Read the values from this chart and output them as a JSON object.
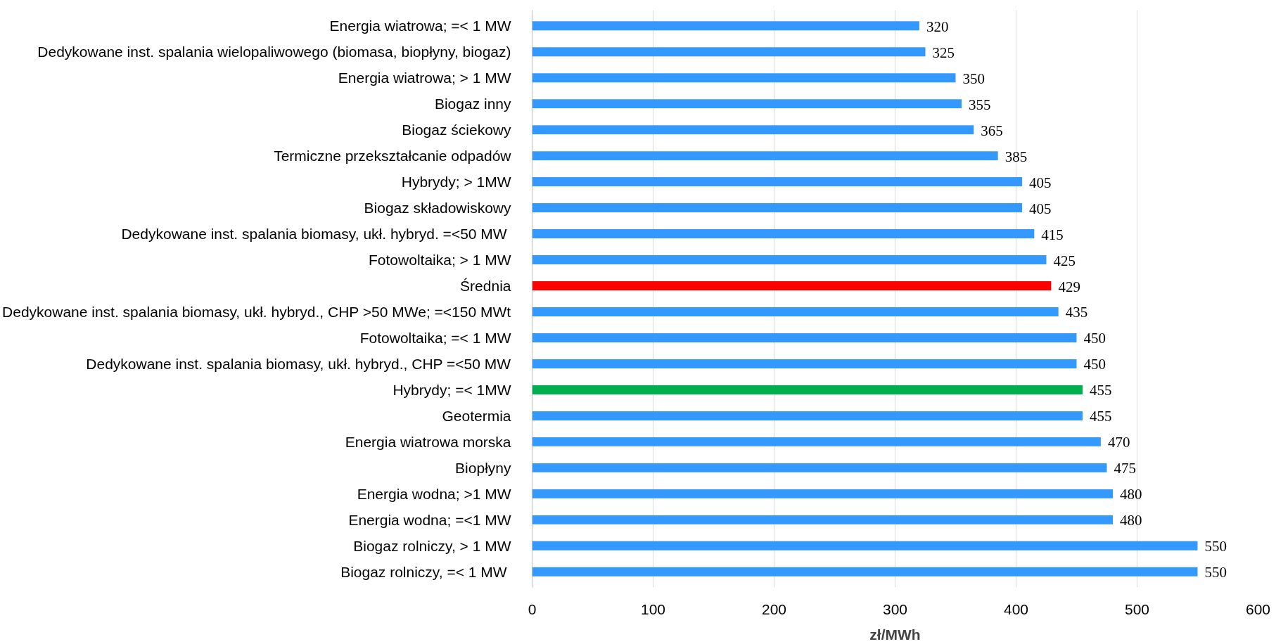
{
  "chart_data": {
    "type": "bar",
    "orientation": "horizontal",
    "xlabel": "zł/MWh",
    "categories": [
      "Energia wiatrowa; =< 1 MW",
      "Dedykowane inst. spalania wielopaliwowego (biomasa, biopłyny, biogaz)",
      "Energia wiatrowa; > 1 MW",
      "Biogaz inny",
      "Biogaz ściekowy",
      "Termiczne przekształcanie odpadów",
      "Hybrydy; > 1MW",
      "Biogaz składowiskowy",
      "Dedykowane inst. spalania biomasy, ukł. hybryd.  =<50 MW",
      "Fotowoltaika; > 1 MW",
      "Średnia",
      "Dedykowane inst. spalania biomasy, ukł. hybryd., CHP >50 MWe; =<150 MWt",
      "Fotowoltaika; =< 1 MW",
      "Dedykowane inst. spalania biomasy, ukł. hybryd., CHP =<50 MW",
      "Hybrydy; =< 1MW",
      "Geotermia",
      "Energia wiatrowa morska",
      "Biopłyny",
      "Energia wodna; >1 MW",
      "Energia wodna; =<1 MW",
      "Biogaz rolniczy, > 1 MW",
      "Biogaz rolniczy,  =< 1 MW"
    ],
    "values": [
      320,
      325,
      350,
      355,
      365,
      385,
      405,
      405,
      415,
      425,
      429,
      435,
      450,
      450,
      455,
      455,
      470,
      475,
      480,
      480,
      550,
      550
    ],
    "colors": [
      "#3399ff",
      "#3399ff",
      "#3399ff",
      "#3399ff",
      "#3399ff",
      "#3399ff",
      "#3399ff",
      "#3399ff",
      "#3399ff",
      "#3399ff",
      "#ff0000",
      "#3399ff",
      "#3399ff",
      "#3399ff",
      "#00b050",
      "#3399ff",
      "#3399ff",
      "#3399ff",
      "#3399ff",
      "#3399ff",
      "#3399ff",
      "#3399ff"
    ],
    "xlim": [
      0,
      600
    ],
    "xticks": [
      0,
      100,
      200,
      300,
      400,
      500,
      600
    ],
    "grid": "x",
    "data_labels": true
  }
}
